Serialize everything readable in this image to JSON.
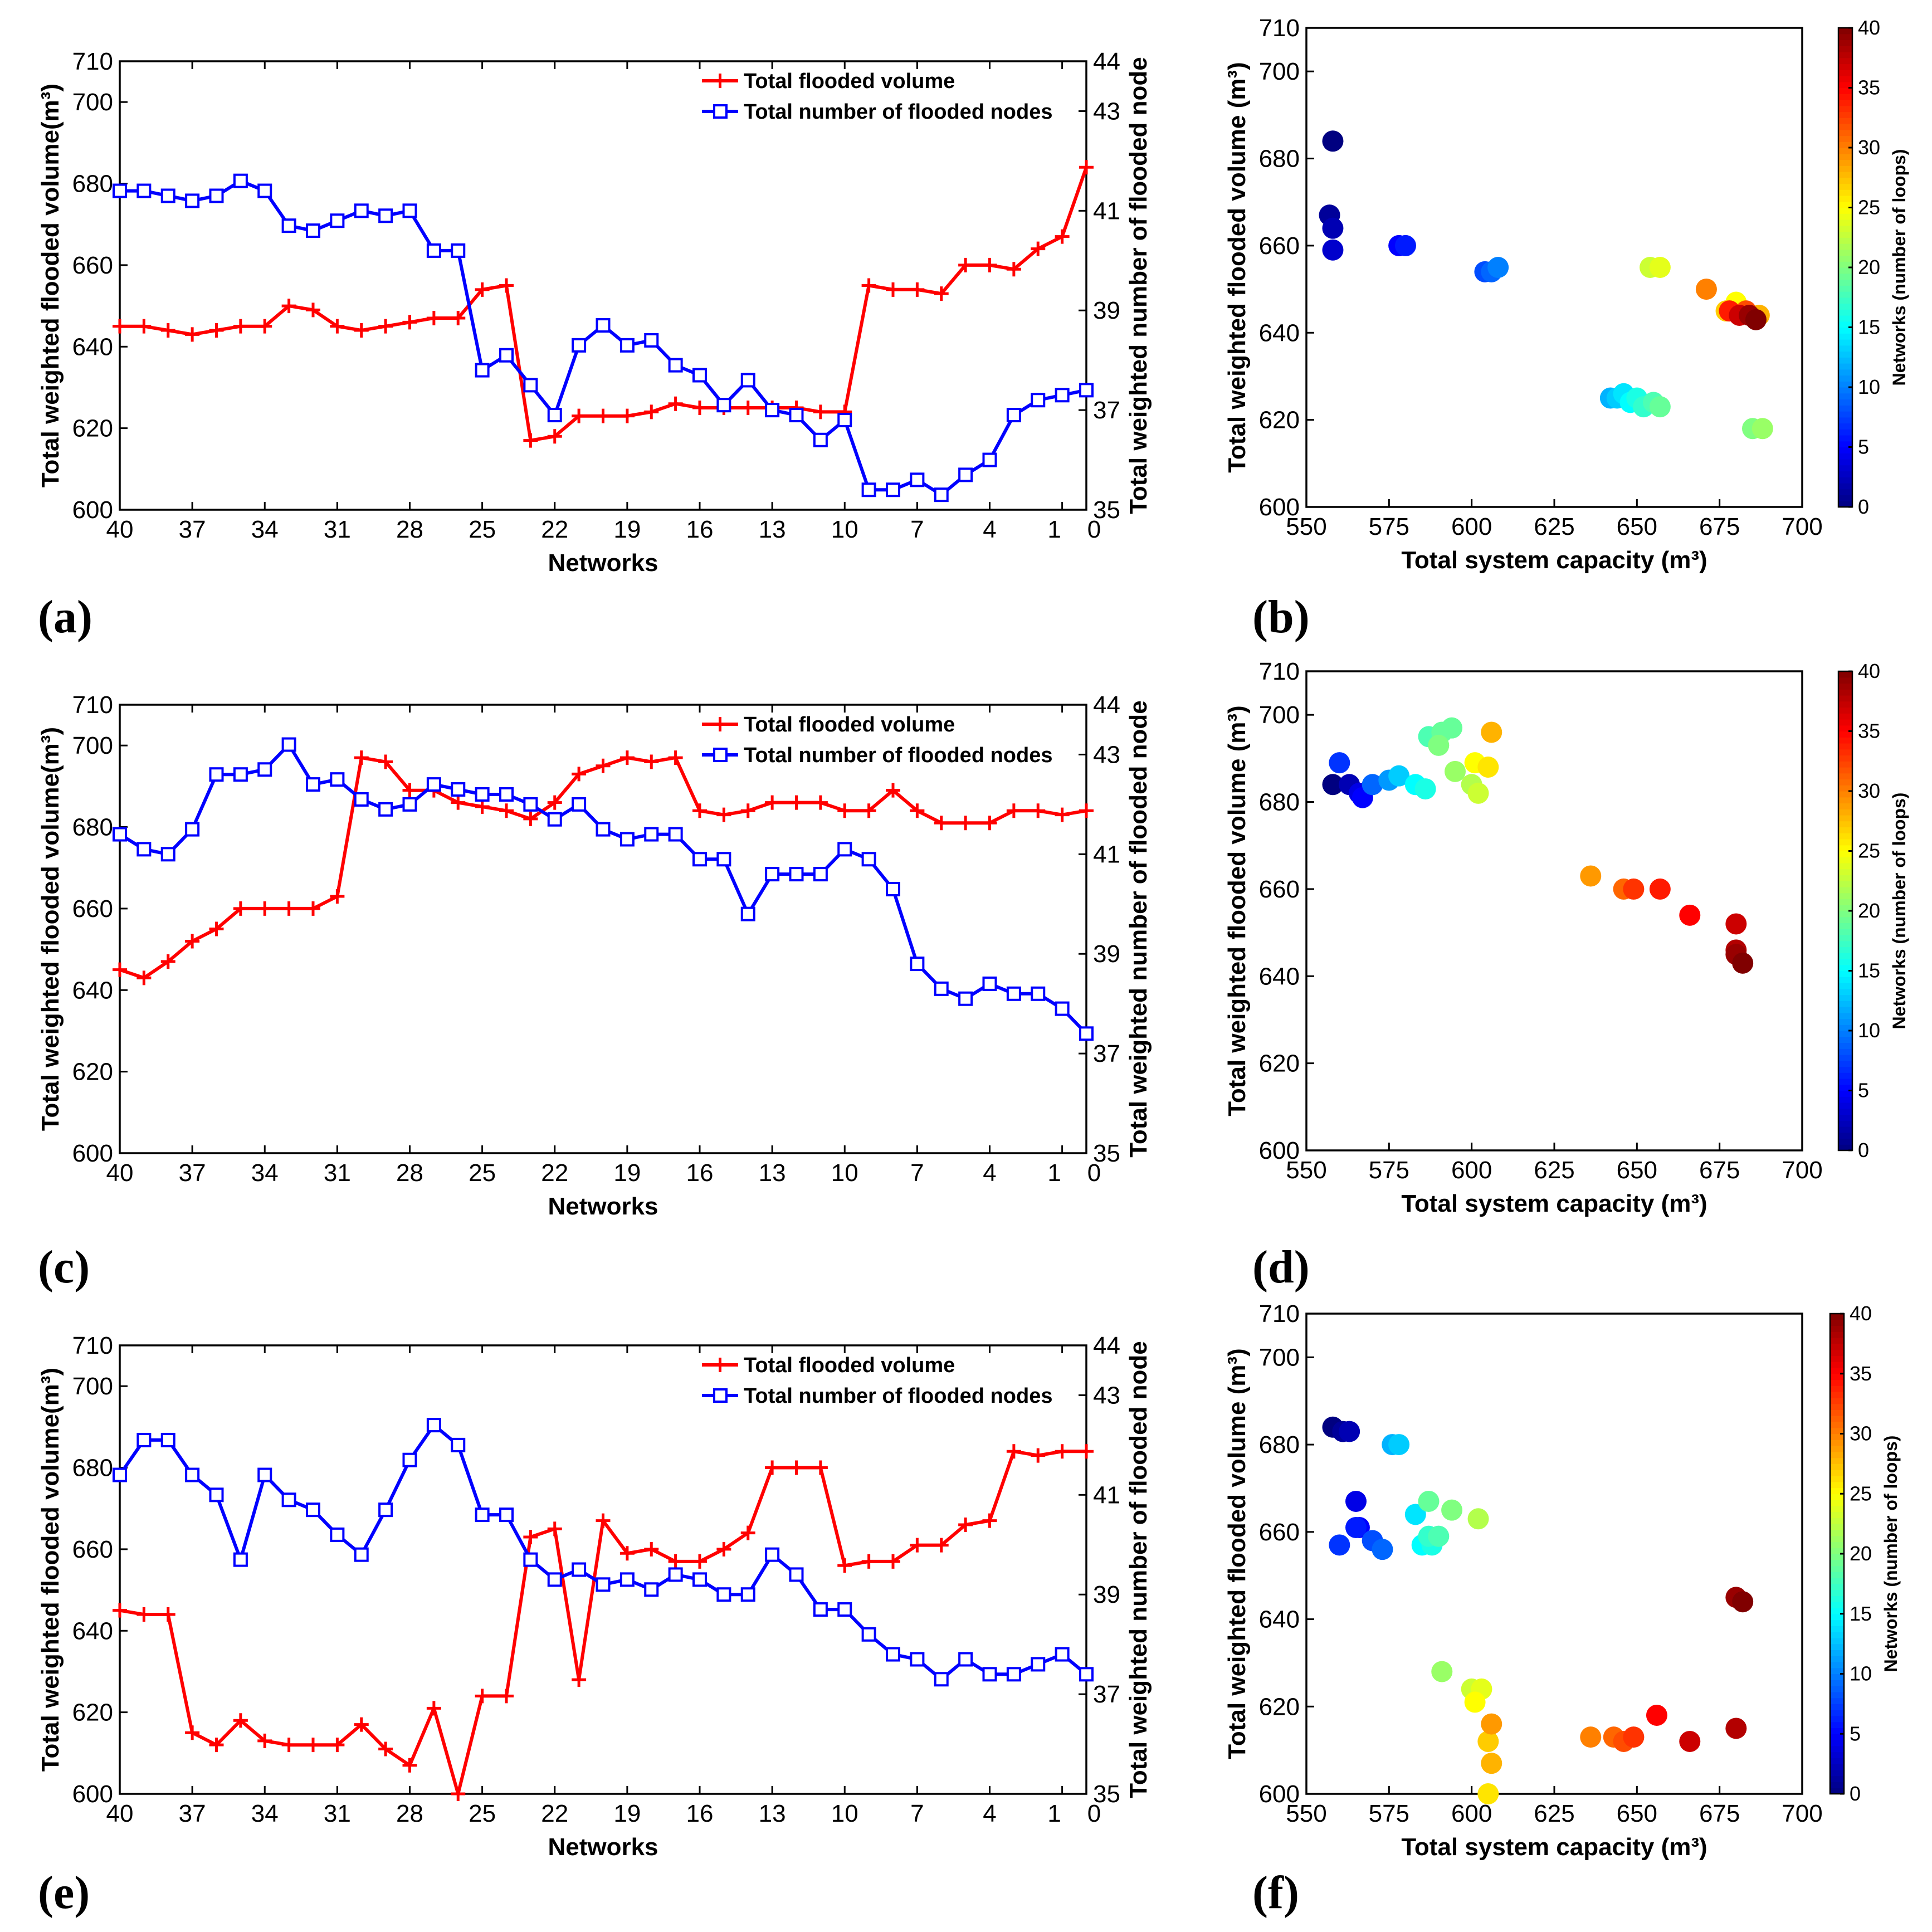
{
  "labels": {
    "networks": "Networks",
    "y_left": "Total weighted flooded volume(m³)",
    "y_right": "Total weighted number of flooded node",
    "x_scatter": "Total system capacity (m³)",
    "y_scatter": "Total weighted flooded volume (m³)",
    "colorbar": "Networks (number of loops)",
    "legend_volume": "Total flooded volume",
    "legend_nodes": "Total number of flooded nodes",
    "panel_a": "(a)",
    "panel_b": "(b)",
    "panel_c": "(c)",
    "panel_d": "(d)",
    "panel_e": "(e)",
    "panel_f": "(f)"
  },
  "colors": {
    "volume": "#ff0000",
    "nodes": "#0000ff",
    "axis": "#000000"
  },
  "chart_data": [
    {
      "panel": "(a)",
      "type": "line",
      "xlabel": "Networks",
      "ylabel": "Total weighted flooded volume(m³)",
      "y2label": "Total weighted number of flooded node",
      "xlim": [
        40,
        0
      ],
      "xticks": [
        40,
        37,
        34,
        31,
        28,
        25,
        22,
        19,
        16,
        13,
        10,
        7,
        4,
        1,
        0
      ],
      "ylim": [
        600,
        710
      ],
      "yticks": [
        600,
        620,
        640,
        660,
        680,
        700,
        710
      ],
      "y2lim": [
        35,
        44
      ],
      "y2ticks": [
        35,
        37,
        39,
        41,
        43,
        44
      ],
      "legend_loc": "top-right",
      "x": [
        40,
        39,
        38,
        37,
        36,
        35,
        34,
        33,
        32,
        31,
        30,
        29,
        28,
        27,
        26,
        25,
        24,
        23,
        22,
        21,
        20,
        19,
        18,
        17,
        16,
        15,
        14,
        13,
        12,
        11,
        10,
        9,
        8,
        7,
        6,
        5,
        4,
        3,
        2,
        1,
        0
      ],
      "series": [
        {
          "name": "Total flooded volume",
          "axis": "left",
          "color": "#ff0000",
          "marker": "+",
          "values": [
            645,
            645,
            644,
            643,
            644,
            645,
            645,
            650,
            649,
            645,
            644,
            645,
            646,
            647,
            647,
            654,
            655,
            617,
            618,
            623,
            623,
            623,
            624,
            626,
            625,
            625,
            625,
            625,
            625,
            624,
            624,
            655,
            654,
            654,
            653,
            660,
            660,
            659,
            664,
            667,
            684
          ]
        },
        {
          "name": "Total number of flooded nodes",
          "axis": "right",
          "color": "#0000ff",
          "marker": "square",
          "values": [
            41.4,
            41.4,
            41.3,
            41.2,
            41.3,
            41.6,
            41.4,
            40.7,
            40.6,
            40.8,
            41,
            40.9,
            41,
            40.2,
            40.2,
            37.8,
            38.1,
            37.5,
            36.9,
            38.3,
            38.7,
            38.3,
            38.4,
            37.9,
            37.7,
            37.1,
            37.6,
            37,
            36.9,
            36.4,
            36.8,
            35.4,
            35.4,
            35.6,
            35.3,
            35.7,
            36,
            36.9,
            37.2,
            37.3,
            37.4
          ]
        }
      ]
    },
    {
      "panel": "(b)",
      "type": "scatter",
      "xlabel": "Total system capacity (m³)",
      "ylabel": "Total weighted flooded volume (m³)",
      "xlim": [
        550,
        700
      ],
      "xticks": [
        550,
        575,
        600,
        625,
        650,
        675,
        700
      ],
      "ylim": [
        600,
        710
      ],
      "yticks": [
        600,
        620,
        640,
        660,
        680,
        700,
        710
      ],
      "colorbar": {
        "label": "Networks (number of loops)",
        "range": [
          0,
          40
        ],
        "ticks": [
          0,
          5,
          10,
          15,
          20,
          25,
          30,
          35,
          40
        ]
      },
      "points": [
        {
          "x": 558,
          "y": 684,
          "c": 0
        },
        {
          "x": 557,
          "y": 667,
          "c": 1
        },
        {
          "x": 558,
          "y": 664,
          "c": 2
        },
        {
          "x": 558,
          "y": 659,
          "c": 3
        },
        {
          "x": 578,
          "y": 660,
          "c": 5
        },
        {
          "x": 580,
          "y": 660,
          "c": 6
        },
        {
          "x": 604,
          "y": 654,
          "c": 8
        },
        {
          "x": 606,
          "y": 654,
          "c": 9
        },
        {
          "x": 608,
          "y": 655,
          "c": 10
        },
        {
          "x": 642,
          "y": 625,
          "c": 12
        },
        {
          "x": 644,
          "y": 625,
          "c": 13
        },
        {
          "x": 646,
          "y": 626,
          "c": 14
        },
        {
          "x": 648,
          "y": 624,
          "c": 15
        },
        {
          "x": 650,
          "y": 625,
          "c": 16
        },
        {
          "x": 652,
          "y": 623,
          "c": 17
        },
        {
          "x": 655,
          "y": 624,
          "c": 18
        },
        {
          "x": 657,
          "y": 623,
          "c": 19
        },
        {
          "x": 685,
          "y": 618,
          "c": 20
        },
        {
          "x": 688,
          "y": 618,
          "c": 21
        },
        {
          "x": 654,
          "y": 655,
          "c": 23
        },
        {
          "x": 657,
          "y": 655,
          "c": 24
        },
        {
          "x": 680,
          "y": 647,
          "c": 25
        },
        {
          "x": 677,
          "y": 645,
          "c": 27
        },
        {
          "x": 687,
          "y": 644,
          "c": 28
        },
        {
          "x": 671,
          "y": 650,
          "c": 30
        },
        {
          "x": 683,
          "y": 645,
          "c": 32
        },
        {
          "x": 678,
          "y": 645,
          "c": 34
        },
        {
          "x": 681,
          "y": 644,
          "c": 37
        },
        {
          "x": 684,
          "y": 644,
          "c": 39
        },
        {
          "x": 686,
          "y": 643,
          "c": 40
        }
      ]
    },
    {
      "panel": "(c)",
      "type": "line",
      "xlabel": "Networks",
      "ylabel": "Total weighted flooded volume(m³)",
      "y2label": "Total weighted number of flooded node",
      "xlim": [
        40,
        0
      ],
      "xticks": [
        40,
        37,
        34,
        31,
        28,
        25,
        22,
        19,
        16,
        13,
        10,
        7,
        4,
        1,
        0
      ],
      "ylim": [
        600,
        710
      ],
      "yticks": [
        600,
        620,
        640,
        660,
        680,
        700,
        710
      ],
      "y2lim": [
        35,
        44
      ],
      "y2ticks": [
        35,
        37,
        39,
        41,
        43,
        44
      ],
      "legend_loc": "top-right",
      "x": [
        40,
        39,
        38,
        37,
        36,
        35,
        34,
        33,
        32,
        31,
        30,
        29,
        28,
        27,
        26,
        25,
        24,
        23,
        22,
        21,
        20,
        19,
        18,
        17,
        16,
        15,
        14,
        13,
        12,
        11,
        10,
        9,
        8,
        7,
        6,
        5,
        4,
        3,
        2,
        1,
        0
      ],
      "series": [
        {
          "name": "Total flooded volume",
          "axis": "left",
          "color": "#ff0000",
          "marker": "+",
          "values": [
            645,
            643,
            647,
            652,
            655,
            660,
            660,
            660,
            660,
            663,
            697,
            696,
            689,
            689,
            686,
            685,
            684,
            682,
            686,
            693,
            695,
            697,
            696,
            697,
            684,
            683,
            684,
            686,
            686,
            686,
            684,
            684,
            689,
            684,
            681,
            681,
            681,
            684,
            684,
            683,
            684
          ]
        },
        {
          "name": "Total number of flooded nodes",
          "axis": "right",
          "color": "#0000ff",
          "marker": "square",
          "values": [
            41.4,
            41.1,
            41,
            41.5,
            42.6,
            42.6,
            42.7,
            43.2,
            42.4,
            42.5,
            42.1,
            41.9,
            42,
            42.4,
            42.3,
            42.2,
            42.2,
            42,
            41.7,
            42,
            41.5,
            41.3,
            41.4,
            41.4,
            40.9,
            40.9,
            39.8,
            40.6,
            40.6,
            40.6,
            41.1,
            40.9,
            40.3,
            38.8,
            38.3,
            38.1,
            38.4,
            38.2,
            38.2,
            37.9,
            37.4
          ]
        }
      ]
    },
    {
      "panel": "(d)",
      "type": "scatter",
      "xlabel": "Total system capacity (m³)",
      "ylabel": "Total weighted flooded volume (m³)",
      "xlim": [
        550,
        700
      ],
      "xticks": [
        550,
        575,
        600,
        625,
        650,
        675,
        700
      ],
      "ylim": [
        600,
        710
      ],
      "yticks": [
        600,
        620,
        640,
        660,
        680,
        700,
        710
      ],
      "colorbar": {
        "label": "Networks (number of loops)",
        "range": [
          0,
          40
        ],
        "ticks": [
          0,
          5,
          10,
          15,
          20,
          25,
          30,
          35,
          40
        ]
      },
      "points": [
        {
          "x": 558,
          "y": 684,
          "c": 0
        },
        {
          "x": 563,
          "y": 684,
          "c": 2
        },
        {
          "x": 566,
          "y": 682,
          "c": 4
        },
        {
          "x": 567,
          "y": 681,
          "c": 5
        },
        {
          "x": 560,
          "y": 689,
          "c": 7
        },
        {
          "x": 570,
          "y": 684,
          "c": 9
        },
        {
          "x": 575,
          "y": 685,
          "c": 11
        },
        {
          "x": 578,
          "y": 686,
          "c": 13
        },
        {
          "x": 583,
          "y": 684,
          "c": 15
        },
        {
          "x": 586,
          "y": 683,
          "c": 16
        },
        {
          "x": 587,
          "y": 695,
          "c": 18
        },
        {
          "x": 591,
          "y": 696,
          "c": 19
        },
        {
          "x": 594,
          "y": 697,
          "c": 19
        },
        {
          "x": 590,
          "y": 693,
          "c": 20
        },
        {
          "x": 595,
          "y": 687,
          "c": 21
        },
        {
          "x": 600,
          "y": 684,
          "c": 22
        },
        {
          "x": 602,
          "y": 682,
          "c": 23
        },
        {
          "x": 601,
          "y": 689,
          "c": 25
        },
        {
          "x": 605,
          "y": 688,
          "c": 26
        },
        {
          "x": 606,
          "y": 696,
          "c": 28
        },
        {
          "x": 636,
          "y": 663,
          "c": 29
        },
        {
          "x": 646,
          "y": 660,
          "c": 31
        },
        {
          "x": 649,
          "y": 660,
          "c": 33
        },
        {
          "x": 657,
          "y": 660,
          "c": 34
        },
        {
          "x": 666,
          "y": 654,
          "c": 35
        },
        {
          "x": 680,
          "y": 652,
          "c": 37
        },
        {
          "x": 680,
          "y": 646,
          "c": 38
        },
        {
          "x": 680,
          "y": 645,
          "c": 39
        },
        {
          "x": 682,
          "y": 643,
          "c": 40
        }
      ]
    },
    {
      "panel": "(e)",
      "type": "line",
      "xlabel": "Networks",
      "ylabel": "Total weighted flooded volume(m³)",
      "y2label": "Total weighted number of flooded node",
      "xlim": [
        40,
        0
      ],
      "xticks": [
        40,
        37,
        34,
        31,
        28,
        25,
        22,
        19,
        16,
        13,
        10,
        7,
        4,
        1,
        0
      ],
      "ylim": [
        600,
        710
      ],
      "yticks": [
        600,
        620,
        640,
        660,
        680,
        700,
        710
      ],
      "y2lim": [
        35,
        44
      ],
      "y2ticks": [
        35,
        37,
        39,
        41,
        43,
        44
      ],
      "legend_loc": "top-right",
      "x": [
        40,
        39,
        38,
        37,
        36,
        35,
        34,
        33,
        32,
        31,
        30,
        29,
        28,
        27,
        26,
        25,
        24,
        23,
        22,
        21,
        20,
        19,
        18,
        17,
        16,
        15,
        14,
        13,
        12,
        11,
        10,
        9,
        8,
        7,
        6,
        5,
        4,
        3,
        2,
        1,
        0
      ],
      "series": [
        {
          "name": "Total flooded volume",
          "axis": "left",
          "color": "#ff0000",
          "marker": "+",
          "values": [
            645,
            644,
            644,
            615,
            612,
            618,
            613,
            612,
            612,
            612,
            617,
            611,
            607,
            621,
            600,
            624,
            624,
            663,
            665,
            628,
            667,
            659,
            660,
            657,
            657,
            660,
            664,
            680,
            680,
            680,
            656,
            657,
            657,
            661,
            661,
            666,
            667,
            684,
            683,
            684,
            684
          ]
        },
        {
          "name": "Total number of flooded nodes",
          "axis": "right",
          "color": "#0000ff",
          "marker": "square",
          "values": [
            41.4,
            42.1,
            42.1,
            41.4,
            41,
            39.7,
            41.4,
            40.9,
            40.7,
            40.2,
            39.8,
            40.7,
            41.7,
            42.4,
            42,
            40.6,
            40.6,
            39.7,
            39.3,
            39.5,
            39.2,
            39.3,
            39.1,
            39.4,
            39.3,
            39,
            39,
            39.8,
            39.4,
            38.7,
            38.7,
            38.2,
            37.8,
            37.7,
            37.3,
            37.7,
            37.4,
            37.4,
            37.6,
            37.8,
            37.4
          ]
        }
      ]
    },
    {
      "panel": "(f)",
      "type": "scatter",
      "xlabel": "Total system capacity (m³)",
      "ylabel": "Total weighted flooded volume (m³)",
      "xlim": [
        550,
        700
      ],
      "xticks": [
        550,
        575,
        600,
        625,
        650,
        675,
        700
      ],
      "ylim": [
        600,
        710
      ],
      "yticks": [
        600,
        620,
        640,
        660,
        680,
        700,
        710
      ],
      "colorbar": {
        "label": "Networks (number of loops)",
        "range": [
          0,
          40
        ],
        "ticks": [
          0,
          5,
          10,
          15,
          20,
          25,
          30,
          35,
          40
        ]
      },
      "points": [
        {
          "x": 558,
          "y": 684,
          "c": 0
        },
        {
          "x": 561,
          "y": 683,
          "c": 1
        },
        {
          "x": 563,
          "y": 683,
          "c": 2
        },
        {
          "x": 565,
          "y": 667,
          "c": 4
        },
        {
          "x": 566,
          "y": 661,
          "c": 5
        },
        {
          "x": 565,
          "y": 661,
          "c": 6
        },
        {
          "x": 560,
          "y": 657,
          "c": 7
        },
        {
          "x": 570,
          "y": 658,
          "c": 8
        },
        {
          "x": 573,
          "y": 656,
          "c": 9
        },
        {
          "x": 576,
          "y": 680,
          "c": 12
        },
        {
          "x": 578,
          "y": 680,
          "c": 13
        },
        {
          "x": 583,
          "y": 664,
          "c": 14
        },
        {
          "x": 585,
          "y": 657,
          "c": 15
        },
        {
          "x": 588,
          "y": 657,
          "c": 16
        },
        {
          "x": 587,
          "y": 659,
          "c": 17
        },
        {
          "x": 590,
          "y": 659,
          "c": 18
        },
        {
          "x": 587,
          "y": 667,
          "c": 19
        },
        {
          "x": 594,
          "y": 665,
          "c": 20
        },
        {
          "x": 591,
          "y": 628,
          "c": 21
        },
        {
          "x": 602,
          "y": 663,
          "c": 22
        },
        {
          "x": 600,
          "y": 624,
          "c": 23
        },
        {
          "x": 603,
          "y": 624,
          "c": 24
        },
        {
          "x": 601,
          "y": 621,
          "c": 25
        },
        {
          "x": 605,
          "y": 600,
          "c": 26
        },
        {
          "x": 605,
          "y": 612,
          "c": 27
        },
        {
          "x": 606,
          "y": 607,
          "c": 28
        },
        {
          "x": 606,
          "y": 616,
          "c": 29
        },
        {
          "x": 636,
          "y": 613,
          "c": 30
        },
        {
          "x": 643,
          "y": 613,
          "c": 31
        },
        {
          "x": 646,
          "y": 612,
          "c": 32
        },
        {
          "x": 649,
          "y": 613,
          "c": 33
        },
        {
          "x": 656,
          "y": 618,
          "c": 35
        },
        {
          "x": 666,
          "y": 612,
          "c": 37
        },
        {
          "x": 680,
          "y": 615,
          "c": 38
        },
        {
          "x": 680,
          "y": 645,
          "c": 39
        },
        {
          "x": 682,
          "y": 644,
          "c": 40
        }
      ]
    }
  ]
}
